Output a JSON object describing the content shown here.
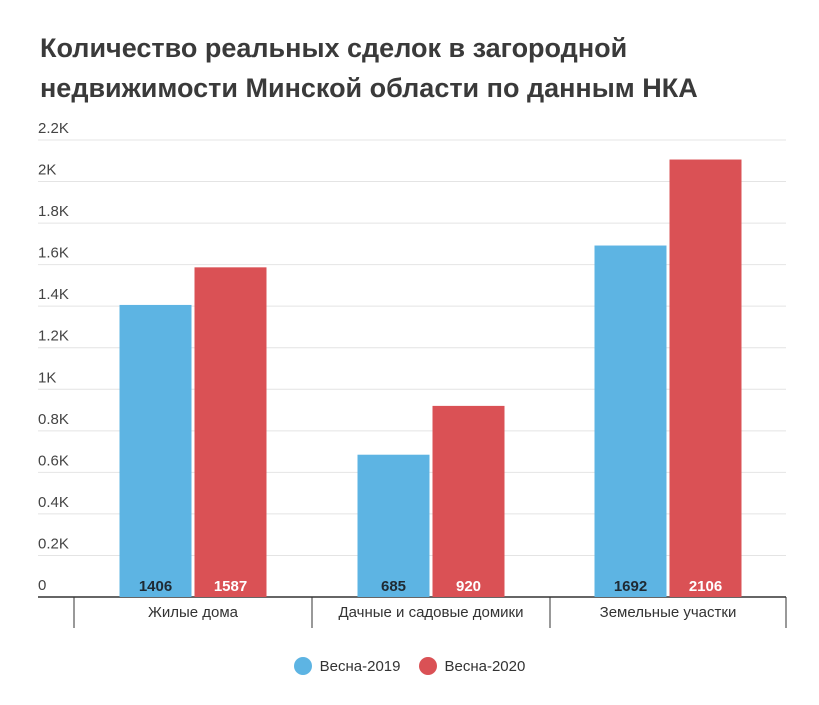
{
  "chart_data": {
    "type": "bar",
    "title_lines": [
      "Количество реальных сделок в загородной",
      "недвижимости Минской области по данным НКА"
    ],
    "categories": [
      "Жилые дома",
      "Дачные и садовые домики",
      "Земельные участки"
    ],
    "series": [
      {
        "name": "Весна-2019",
        "color": "#5db4e3",
        "values": [
          1406,
          685,
          1692
        ],
        "value_labels": [
          "1406",
          "685",
          "1692"
        ],
        "label_color": "#1f2a33"
      },
      {
        "name": "Весна-2020",
        "color": "#da5155",
        "values": [
          1587,
          920,
          2106
        ],
        "value_labels": [
          "1587",
          "920",
          "2106"
        ],
        "label_color": "#ffffff"
      }
    ],
    "ylim": [
      0,
      2200
    ],
    "yticks": [
      0,
      200,
      400,
      600,
      800,
      1000,
      1200,
      1400,
      1600,
      1800,
      2000,
      2200
    ],
    "ytick_labels": [
      "0",
      "0.2K",
      "0.4K",
      "0.6K",
      "0.8K",
      "1K",
      "1.2K",
      "1.4K",
      "1.6K",
      "1.8K",
      "2K",
      "2.2K"
    ],
    "grid": true,
    "legend_position": "bottom-center",
    "xlabel": "",
    "ylabel": ""
  }
}
